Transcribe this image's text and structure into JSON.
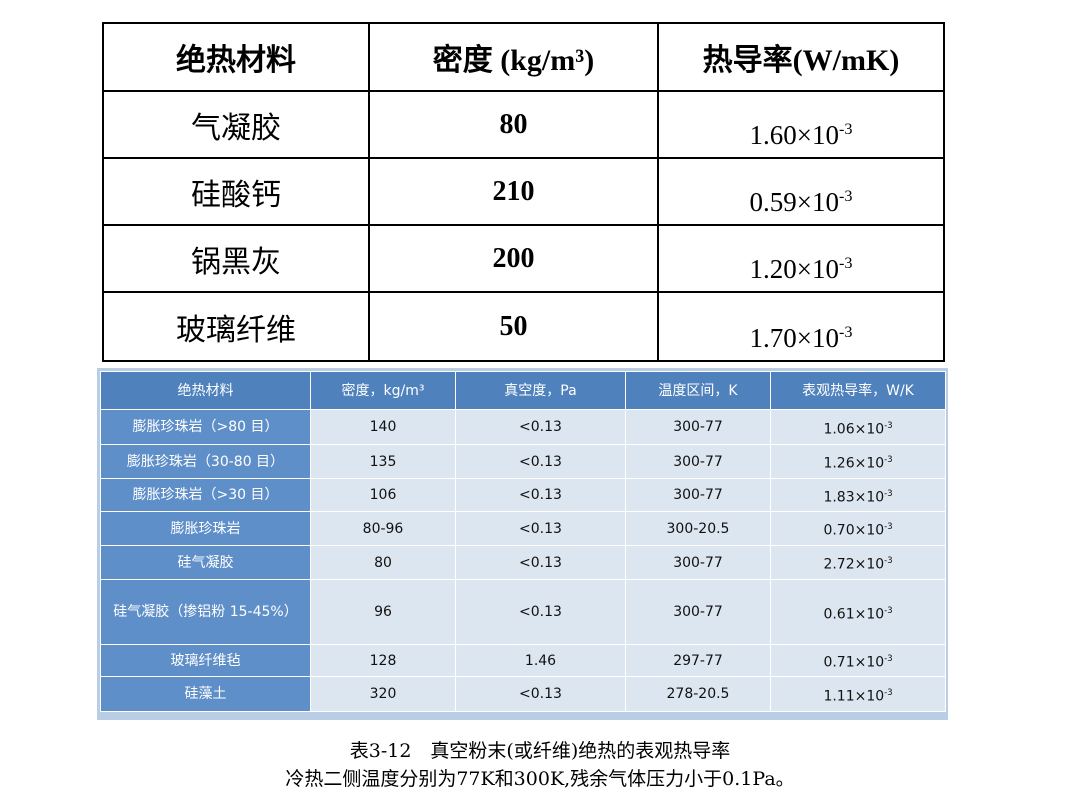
{
  "table1": {
    "header": [
      "绝热材料",
      "密度 (kg/m³)",
      "热导率(W/mK)"
    ],
    "rows": [
      [
        "气凝胶",
        "80",
        {
          "mantissa": "1.60×10",
          "exponent": "-3"
        }
      ],
      [
        "硅酸钙",
        "210",
        {
          "mantissa": "0.59×10",
          "exponent": "-3"
        }
      ],
      [
        "锅黑灰",
        "200",
        {
          "mantissa": "1.20×10",
          "exponent": "-3"
        }
      ],
      [
        "玻璃纤维",
        "50",
        {
          "mantissa": "1.70×10",
          "exponent": "-3"
        }
      ]
    ]
  },
  "table2": {
    "header": [
      "绝热材料",
      "密度，kg/m³",
      "真空度，Pa",
      "温度区间，K",
      "表观热导率，W/K"
    ],
    "rows": [
      [
        "膨胀珍珠岩（>80 目）",
        "140",
        "<0.13",
        "300-77",
        {
          "mantissa": "1.06×10",
          "exponent": "-3"
        }
      ],
      [
        "膨胀珍珠岩（30-80 目）",
        "135",
        "<0.13",
        "300-77",
        {
          "mantissa": "1.26×10",
          "exponent": "-3"
        }
      ],
      [
        "膨胀珍珠岩（>30 目）",
        "106",
        "<0.13",
        "300-77",
        {
          "mantissa": "1.83×10",
          "exponent": "-3"
        }
      ],
      [
        "膨胀珍珠岩",
        "80-96",
        "<0.13",
        "300-20.5",
        {
          "mantissa": "0.70×10",
          "exponent": "-3"
        }
      ],
      [
        "硅气凝胶",
        "80",
        "<0.13",
        "300-77",
        {
          "mantissa": "2.72×10",
          "exponent": "-3"
        }
      ],
      [
        "硅气凝胶（掺铝粉 15-45%）",
        "96",
        "<0.13",
        "300-77",
        {
          "mantissa": "0.61×10",
          "exponent": "-3"
        }
      ],
      [
        "玻璃纤维毡",
        "128",
        "1.46",
        "297-77",
        {
          "mantissa": "0.71×10",
          "exponent": "-3"
        }
      ],
      [
        "硅藻土",
        "320",
        "<0.13",
        "278-20.5",
        {
          "mantissa": "1.11×10",
          "exponent": "-3"
        }
      ]
    ]
  },
  "caption": {
    "title": "表3-12　真空粉末(或纤维)绝热的表观热导率",
    "note": "冷热二侧温度分别为77K和300K,残余气体压力小于0.1Pa。"
  }
}
